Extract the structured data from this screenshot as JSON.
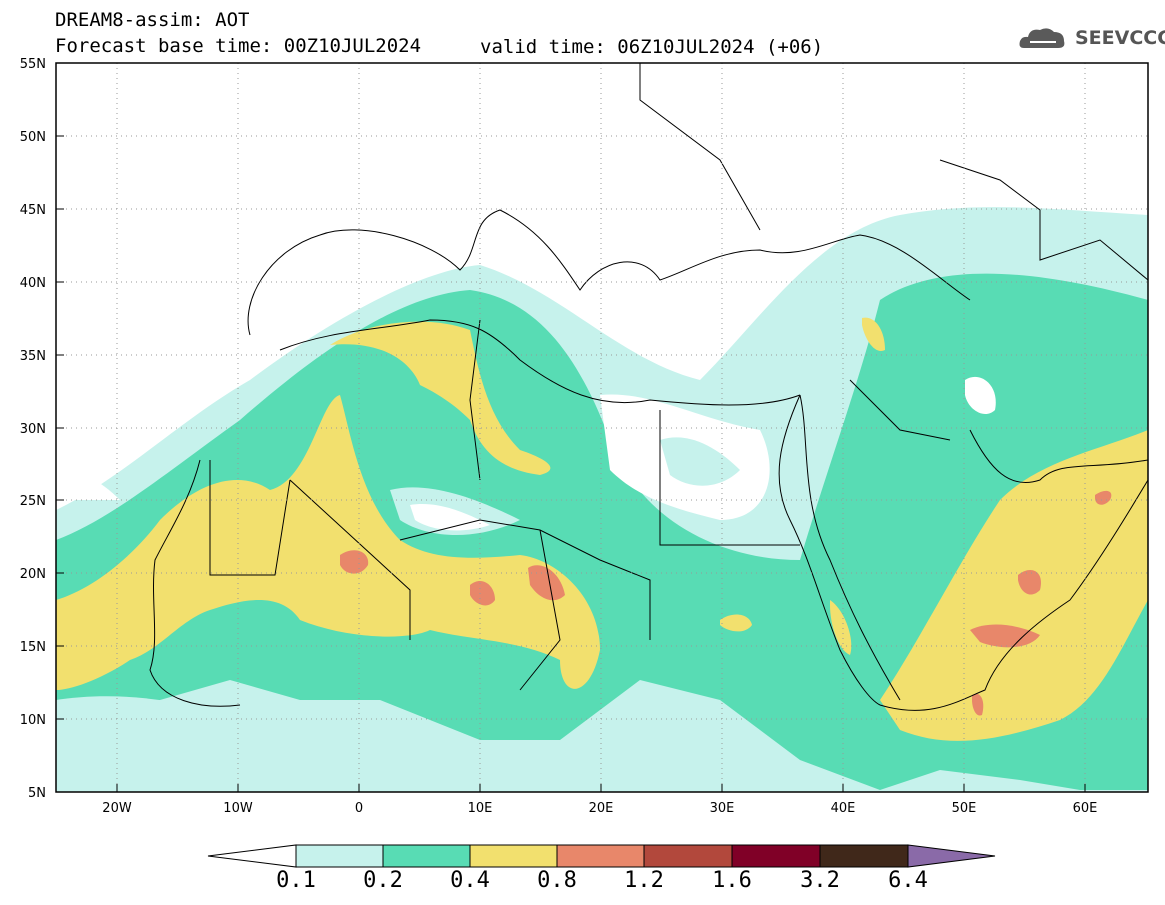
{
  "header": {
    "model_line": "DREAM8-assim: AOT",
    "base_time": "Forecast base time: 00Z10JUL2024",
    "valid_time": "valid time: 06Z10JUL2024 (+06)"
  },
  "logo": {
    "text": "SEEVCCC",
    "icon": "cloud-icon"
  },
  "map": {
    "lon_range": [
      -25,
      65
    ],
    "lat_range": [
      5,
      55
    ],
    "lat_ticks": [
      "55N",
      "50N",
      "45N",
      "40N",
      "35N",
      "30N",
      "25N",
      "20N",
      "15N",
      "10N",
      "5N"
    ],
    "lon_ticks": [
      "20W",
      "10W",
      "0",
      "10E",
      "20E",
      "30E",
      "40E",
      "50E",
      "60E"
    ],
    "grid": "dotted"
  },
  "colorbar": {
    "levels": [
      "0.1",
      "0.2",
      "0.4",
      "0.8",
      "1.2",
      "1.6",
      "3.2",
      "6.4"
    ],
    "colors": [
      "#c6f2ec",
      "#58dcb4",
      "#f2e06e",
      "#e8876a",
      "#b2483c",
      "#800027",
      "#40281a",
      "#8a6aa8"
    ]
  }
}
